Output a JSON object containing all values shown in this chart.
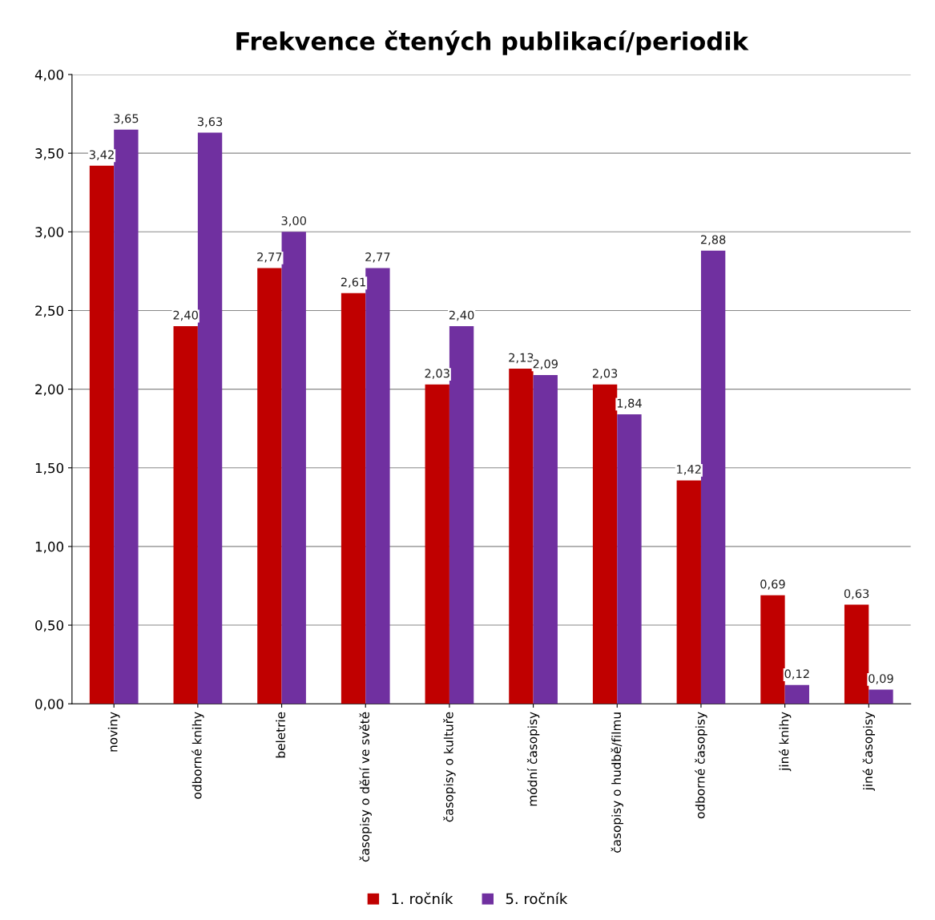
{
  "chart_data": {
    "type": "bar",
    "title": "Frekvence čtených publikací/periodik",
    "categories": [
      "noviny",
      "odborné knihy",
      "beletrie",
      "časopisy o dění ve světě",
      "časopisy o kultuře",
      "módní časopisy",
      "časopisy o hudbě/filmu",
      "odborné časopisy",
      "jiné knihy",
      "jiné časopisy"
    ],
    "series": [
      {
        "name": "1. ročník",
        "color": "#c00000",
        "values": [
          3.42,
          2.4,
          2.77,
          2.61,
          2.03,
          2.13,
          2.03,
          1.42,
          0.69,
          0.63
        ],
        "value_labels": [
          "3,42",
          "2,40",
          "2,77",
          "2,61",
          "2,03",
          "2,13",
          "2,03",
          "1,42",
          "0,69",
          "0,63"
        ]
      },
      {
        "name": "5. ročník",
        "color": "#7030a0",
        "values": [
          3.65,
          3.63,
          3.0,
          2.77,
          2.4,
          2.09,
          1.84,
          2.88,
          0.12,
          0.09
        ],
        "value_labels": [
          "3,65",
          "3,63",
          "3,00",
          "2,77",
          "2,40",
          "2,09",
          "1,84",
          "2,88",
          "0,12",
          "0,09"
        ]
      }
    ],
    "ylim": [
      0,
      4
    ],
    "yticks": [
      {
        "value": 0,
        "label": "0,00"
      },
      {
        "value": 0.5,
        "label": "0,50"
      },
      {
        "value": 1,
        "label": "1,00"
      },
      {
        "value": 1.5,
        "label": "1,50"
      },
      {
        "value": 2,
        "label": "2,00"
      },
      {
        "value": 2.5,
        "label": "2,50"
      },
      {
        "value": 3,
        "label": "3,00"
      },
      {
        "value": 3.5,
        "label": "3,50"
      },
      {
        "value": 4,
        "label": "4,00"
      }
    ],
    "grid": "y",
    "legend": "bottom"
  }
}
